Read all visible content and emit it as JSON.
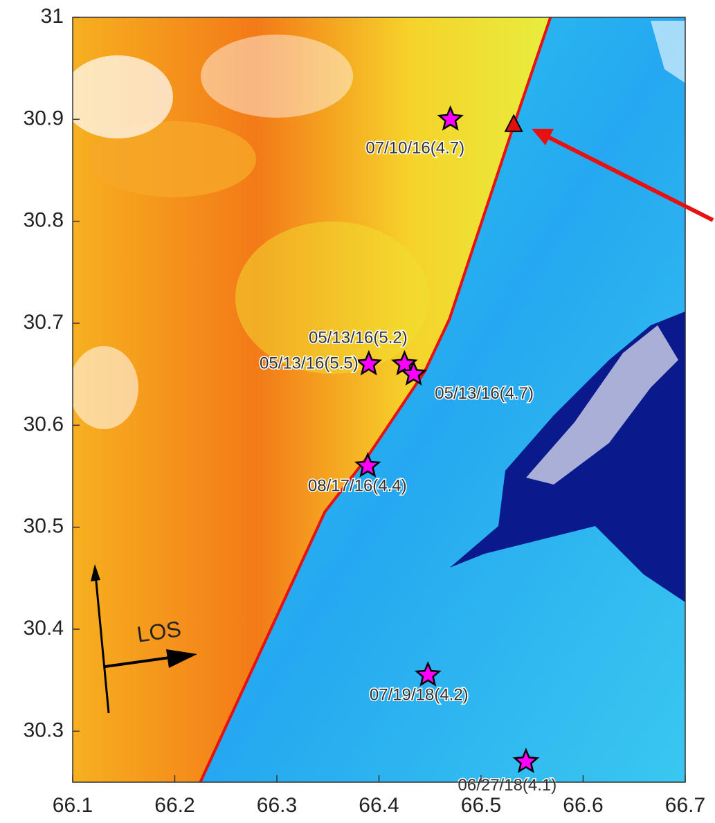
{
  "chart_data": {
    "type": "scatter",
    "xlim": [
      66.1,
      66.7
    ],
    "ylim": [
      30.25,
      31
    ],
    "xticks": [
      66.1,
      66.2,
      66.3,
      66.4,
      66.5,
      66.6,
      66.7
    ],
    "yticks": [
      30.3,
      30.4,
      30.5,
      30.6,
      30.7,
      30.8,
      30.9,
      31
    ],
    "events": {
      "color": "#ff00ff",
      "labels": [
        "07/10/16(4.7)",
        "05/13/16(5.2)",
        "05/13/16(5.5)",
        "05/13/16(4.7)",
        "08/17/16(4.4)",
        "07/19/18(4.2)",
        "06/27/18(4.1)"
      ],
      "x": [
        66.47,
        66.425,
        66.39,
        66.434,
        66.389,
        66.448,
        66.544
      ],
      "y": [
        30.9,
        30.66,
        30.66,
        30.65,
        30.56,
        30.355,
        30.27
      ]
    },
    "triangle": {
      "color": "#e01010",
      "x": [
        66.532
      ],
      "y": [
        30.895
      ]
    },
    "fault": {
      "color": "#e81010",
      "x": [
        66.225,
        66.347,
        66.388,
        66.445,
        66.469,
        66.53,
        66.568
      ],
      "y": [
        30.25,
        30.515,
        30.568,
        30.653,
        30.704,
        30.888,
        31
      ]
    },
    "annotation": "LOS"
  }
}
